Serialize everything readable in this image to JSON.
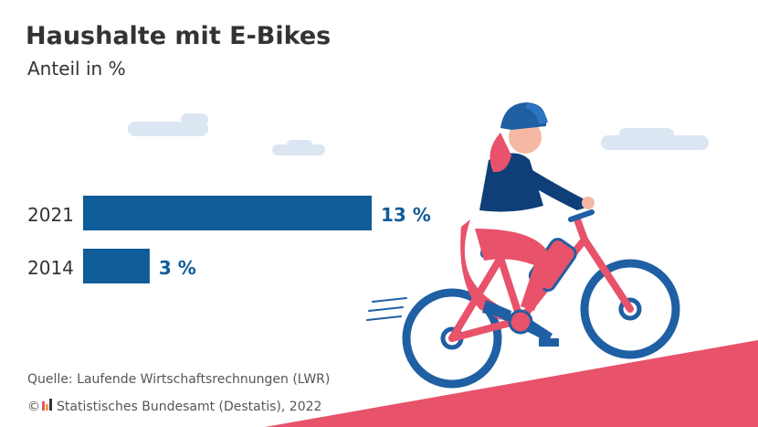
{
  "chart_data": {
    "type": "bar",
    "orientation": "horizontal",
    "title": "Haushalte mit E-Bikes",
    "subtitle": "Anteil in %",
    "categories": [
      "2021",
      "2014"
    ],
    "values": [
      13,
      3
    ],
    "value_labels": [
      "13 %",
      "3 %"
    ],
    "bar_color": "#0f5c99",
    "grid": false
  },
  "footer": {
    "source": "Quelle: Laufende Wirtschaftsrechnungen (LWR)",
    "copyright": "© ",
    "publisher": "Statistisches Bundesamt (Destatis), 2022"
  },
  "illustration": {
    "icons": [
      "cloud-icon",
      "cyclist-illustration",
      "destatis-logo-icon"
    ],
    "colors": {
      "blue": "#0f5c99",
      "pink": "#e8526a",
      "cloud": "#dbe6f2",
      "slope": "#e8526a",
      "wheel_blue": "#1f5fa3"
    }
  }
}
